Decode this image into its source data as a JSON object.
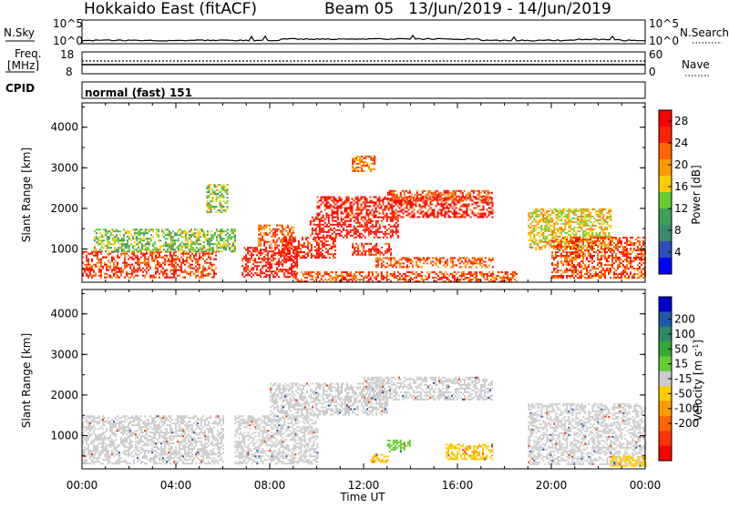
{
  "header": {
    "title": "Hokkaido East (fitACF)",
    "beam": "Beam 05",
    "dates": "13/Jun/2019 - 14/Jun/2019"
  },
  "sky_panel": {
    "label": "N.Sky",
    "ticks_left": [
      "10^5",
      "10^0"
    ],
    "ticks_right": [
      "10^5",
      "10^0"
    ],
    "right_label": "N.Search"
  },
  "freq_panel": {
    "label_line1": "Freq.",
    "label_line2": "[MHz]",
    "ticks_left": [
      "18",
      "8"
    ],
    "ticks_right": [
      "60",
      "0"
    ],
    "right_label": "Nave"
  },
  "cpid_panel": {
    "label": "CPID",
    "value": "normal (fast) 151"
  },
  "colors": {
    "power_scale": [
      "#0000ff",
      "#2a4fb8",
      "#3c8a6a",
      "#3f9f58",
      "#66cc33",
      "#ffcc00",
      "#ff9900",
      "#ff6600",
      "#ff2200",
      "#ff0000"
    ],
    "velocity_scale": [
      "#0000cc",
      "#1e5aa8",
      "#2f8a64",
      "#33aa33",
      "#66cc33",
      "#cccccc",
      "#ffcc00",
      "#ff9900",
      "#ff6600",
      "#ff3300",
      "#ff0000"
    ]
  },
  "chart_data": [
    {
      "type": "heatmap",
      "name": "power",
      "xlabel": "",
      "ylabel": "Slant Range [km]",
      "xlim": [
        0,
        24
      ],
      "ylim": [
        180,
        4600
      ],
      "yticks": [
        "1000",
        "2000",
        "3000",
        "4000"
      ],
      "colorbar": {
        "label": "Power [dB]",
        "ticks": [
          "4",
          "8",
          "12",
          "16",
          "20",
          "24",
          "28"
        ],
        "range": [
          0,
          30
        ]
      },
      "regions": [
        {
          "x": [
            0,
            5.7
          ],
          "y": [
            300,
            950
          ],
          "v": 25
        },
        {
          "x": [
            0.5,
            6.5
          ],
          "y": [
            950,
            1500
          ],
          "v": 13
        },
        {
          "x": [
            6.8,
            9.2
          ],
          "y": [
            300,
            1050
          ],
          "v": 27
        },
        {
          "x": [
            7.5,
            9
          ],
          "y": [
            1100,
            1600
          ],
          "v": 23
        },
        {
          "x": [
            8.5,
            10.8
          ],
          "y": [
            800,
            1300
          ],
          "v": 27
        },
        {
          "x": [
            9.7,
            13.5
          ],
          "y": [
            1300,
            1800
          ],
          "v": 28
        },
        {
          "x": [
            10,
            17.5
          ],
          "y": [
            1800,
            2300
          ],
          "v": 27
        },
        {
          "x": [
            13,
            17.5
          ],
          "y": [
            2200,
            2450
          ],
          "v": 25
        },
        {
          "x": [
            11.5,
            13.2
          ],
          "y": [
            850,
            1150
          ],
          "v": 26
        },
        {
          "x": [
            12.5,
            17.5
          ],
          "y": [
            550,
            800
          ],
          "v": 23
        },
        {
          "x": [
            9,
            18.5
          ],
          "y": [
            220,
            450
          ],
          "v": 24
        },
        {
          "x": [
            19,
            22.5
          ],
          "y": [
            1000,
            2000
          ],
          "v": 17
        },
        {
          "x": [
            20,
            24
          ],
          "y": [
            300,
            1300
          ],
          "v": 24
        },
        {
          "x": [
            11.5,
            12.5
          ],
          "y": [
            2900,
            3300
          ],
          "v": 22
        },
        {
          "x": [
            5.3,
            6.2
          ],
          "y": [
            1900,
            2600
          ],
          "v": 14
        }
      ]
    },
    {
      "type": "heatmap",
      "name": "velocity",
      "xlabel": "Time UT",
      "ylabel": "Slant Range [km]",
      "xlim": [
        0,
        24
      ],
      "ylim": [
        180,
        4600
      ],
      "xticks": [
        "00:00",
        "04:00",
        "08:00",
        "12:00",
        "16:00",
        "20:00",
        "00:00"
      ],
      "yticks": [
        "1000",
        "2000",
        "3000",
        "4000"
      ],
      "colorbar": {
        "label": "Velocity [m s^-1]",
        "ticks": [
          "200",
          "100",
          "50",
          "15",
          "-15",
          "-50",
          "-100",
          "-200"
        ],
        "range": [
          -250,
          250
        ]
      },
      "regions": [
        {
          "x": [
            0,
            6
          ],
          "y": [
            300,
            1500
          ],
          "v": 0
        },
        {
          "x": [
            6.5,
            10
          ],
          "y": [
            300,
            1500
          ],
          "v": 0
        },
        {
          "x": [
            8,
            13
          ],
          "y": [
            1500,
            2300
          ],
          "v": 0
        },
        {
          "x": [
            12,
            17.5
          ],
          "y": [
            1900,
            2450
          ],
          "v": 0
        },
        {
          "x": [
            12.3,
            13
          ],
          "y": [
            350,
            550
          ],
          "v": -60
        },
        {
          "x": [
            15.5,
            17.5
          ],
          "y": [
            400,
            800
          ],
          "v": -60
        },
        {
          "x": [
            19,
            24
          ],
          "y": [
            300,
            1800
          ],
          "v": 0
        },
        {
          "x": [
            13,
            14
          ],
          "y": [
            600,
            900
          ],
          "v": 40
        },
        {
          "x": [
            22.5,
            24
          ],
          "y": [
            250,
            500
          ],
          "v": -40
        }
      ]
    }
  ]
}
